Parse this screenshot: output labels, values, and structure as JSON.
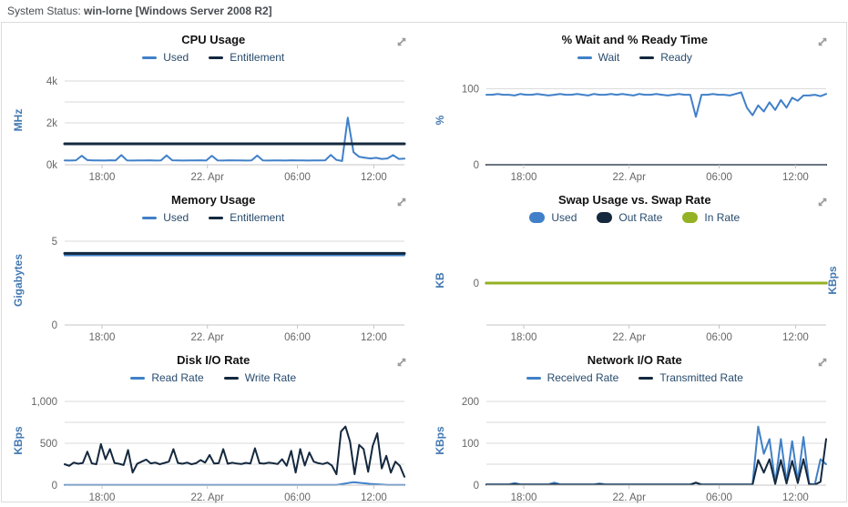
{
  "header": {
    "label": "System Status:",
    "value": "win-lorne [Windows Server 2008 R2]"
  },
  "icons": {
    "expand": "diagonal-resize-arrows"
  },
  "colors": {
    "blue": "#4080c8",
    "navy": "#14283e",
    "green": "#94b223",
    "legend_text": "#274b6d",
    "axis_title": "#4379b2",
    "tick_text": "#666666",
    "grid": "#d9d9d9",
    "axis_line": "#c4c4c4",
    "title": "#121212",
    "expand_icon": "#9a9a9a",
    "header_text": "#484d52",
    "panel_border": "#dcdcdc"
  },
  "x_axis": {
    "labels": [
      "18:00",
      "22. Apr",
      "06:00",
      "12:00"
    ],
    "fractions": [
      0.11,
      0.42,
      0.685,
      0.91
    ]
  },
  "charts": [
    {
      "type": "line",
      "title": "CPU Usage",
      "y_title": "MHz",
      "ymin": 0,
      "ymax": 4000,
      "grid": [
        1000,
        2000,
        3000,
        4000
      ],
      "yticks": [
        {
          "v": 0,
          "l": "0k"
        },
        {
          "v": 2000,
          "l": "2k"
        },
        {
          "v": 4000,
          "l": "4k"
        }
      ],
      "legend": "line",
      "series": [
        {
          "name": "Used",
          "color": "blue",
          "width": 2,
          "values": [
            210,
            200,
            215,
            430,
            220,
            205,
            210,
            200,
            215,
            205,
            460,
            210,
            200,
            210,
            205,
            215,
            200,
            210,
            450,
            215,
            205,
            200,
            210,
            205,
            215,
            200,
            430,
            210,
            200,
            215,
            205,
            210,
            200,
            205,
            440,
            210,
            200,
            210,
            205,
            200,
            215,
            205,
            210,
            200,
            210,
            205,
            215,
            470,
            230,
            180,
            2250,
            600,
            380,
            340,
            300,
            330,
            280,
            300,
            460,
            280,
            290
          ]
        },
        {
          "name": "Entitlement",
          "color": "navy",
          "width": 3,
          "values": [
            1000,
            1000
          ]
        }
      ]
    },
    {
      "type": "line",
      "title": "% Wait and % Ready Time",
      "y_title": "%",
      "ymin": 0,
      "ymax": 110,
      "grid": [
        100
      ],
      "yticks": [
        {
          "v": 0,
          "l": "0"
        },
        {
          "v": 100,
          "l": "100"
        }
      ],
      "legend": "line",
      "series": [
        {
          "name": "Wait",
          "color": "blue",
          "width": 2,
          "values": [
            92,
            92,
            93,
            92,
            92,
            91,
            93,
            92,
            92,
            93,
            92,
            91,
            92,
            93,
            92,
            92,
            93,
            92,
            91,
            93,
            92,
            92,
            93,
            92,
            93,
            92,
            91,
            93,
            92,
            92,
            93,
            92,
            91,
            92,
            93,
            92,
            92,
            63,
            92,
            92,
            93,
            92,
            92,
            91,
            93,
            95,
            75,
            65,
            78,
            70,
            82,
            72,
            85,
            75,
            88,
            84,
            91,
            91,
            92,
            90,
            93
          ]
        },
        {
          "name": "Ready",
          "color": "navy",
          "width": 2,
          "values": [
            0,
            0
          ]
        }
      ]
    },
    {
      "type": "line",
      "title": "Memory Usage",
      "y_title": "Gigabytes",
      "ymin": 0,
      "ymax": 5,
      "grid": [
        5
      ],
      "yticks": [
        {
          "v": 0,
          "l": "0"
        },
        {
          "v": 5,
          "l": "5"
        }
      ],
      "legend": "line",
      "series": [
        {
          "name": "Used",
          "color": "blue",
          "width": 2,
          "values": [
            4.16,
            4.16
          ]
        },
        {
          "name": "Entitlement",
          "color": "navy",
          "width": 3,
          "values": [
            4.27,
            4.27
          ]
        }
      ]
    },
    {
      "type": "line",
      "title": "Swap Usage vs. Swap Rate",
      "y_title": "KB",
      "y_title_right": "KBps",
      "ymin": -1,
      "ymax": 1,
      "grid": [
        0
      ],
      "yticks": [
        {
          "v": 0,
          "l": "0"
        }
      ],
      "legend": "pill",
      "series": [
        {
          "name": "Used",
          "color": "blue",
          "width": 3,
          "values": [
            0,
            0
          ]
        },
        {
          "name": "Out Rate",
          "color": "navy",
          "width": 3,
          "values": [
            0,
            0
          ]
        },
        {
          "name": "In Rate",
          "color": "green",
          "width": 3,
          "values": [
            0,
            0
          ]
        }
      ]
    },
    {
      "type": "line",
      "title": "Disk I/O Rate",
      "y_title": "KBps",
      "ymin": 0,
      "ymax": 1000,
      "grid": [
        250,
        500,
        750,
        1000
      ],
      "yticks": [
        {
          "v": 0,
          "l": "0"
        },
        {
          "v": 500,
          "l": "500"
        },
        {
          "v": 1000,
          "l": "1,000"
        }
      ],
      "legend": "line",
      "series": [
        {
          "name": "Read Rate",
          "color": "blue",
          "width": 2,
          "values": [
            3,
            3,
            3,
            3,
            3,
            3,
            3,
            3,
            3,
            3,
            3,
            3,
            3,
            3,
            3,
            3,
            3,
            35,
            15,
            3,
            3
          ]
        },
        {
          "name": "Write Rate",
          "color": "navy",
          "width": 2,
          "values": [
            250,
            230,
            270,
            255,
            265,
            400,
            260,
            250,
            490,
            310,
            430,
            265,
            255,
            240,
            420,
            150,
            255,
            280,
            305,
            260,
            270,
            250,
            265,
            280,
            430,
            265,
            255,
            270,
            250,
            262,
            300,
            268,
            360,
            258,
            262,
            430,
            255,
            268,
            258,
            252,
            266,
            258,
            440,
            262,
            256,
            268,
            262,
            252,
            310,
            232,
            410,
            150,
            430,
            235,
            390,
            280,
            262,
            252,
            270,
            235,
            130,
            640,
            700,
            520,
            130,
            480,
            430,
            160,
            470,
            620,
            200,
            350,
            150,
            280,
            230,
            100
          ]
        }
      ]
    },
    {
      "type": "line",
      "title": "Network I/O Rate",
      "y_title": "KBps",
      "ymin": 0,
      "ymax": 200,
      "grid": [
        50,
        100,
        150,
        200
      ],
      "yticks": [
        {
          "v": 0,
          "l": "0"
        },
        {
          "v": 100,
          "l": "100"
        },
        {
          "v": 200,
          "l": "200"
        }
      ],
      "legend": "line",
      "series": [
        {
          "name": "Received Rate",
          "color": "blue",
          "width": 2,
          "values": [
            2,
            2,
            2,
            2,
            2,
            5,
            2,
            2,
            2,
            2,
            2,
            2,
            6,
            2,
            2,
            2,
            2,
            2,
            2,
            2,
            4,
            2,
            2,
            2,
            2,
            2,
            2,
            2,
            2,
            2,
            2,
            2,
            2,
            2,
            2,
            2,
            2,
            5,
            2,
            2,
            2,
            2,
            2,
            2,
            2,
            2,
            2,
            2,
            140,
            75,
            110,
            5,
            110,
            8,
            105,
            10,
            115,
            3,
            2,
            62,
            50
          ]
        },
        {
          "name": "Transmitted Rate",
          "color": "navy",
          "width": 2,
          "values": [
            1,
            1,
            1,
            1,
            1,
            2,
            1,
            1,
            1,
            1,
            1,
            1,
            2,
            1,
            1,
            1,
            1,
            1,
            1,
            1,
            2,
            1,
            1,
            1,
            1,
            1,
            1,
            1,
            1,
            1,
            1,
            1,
            1,
            1,
            1,
            1,
            1,
            6,
            1,
            1,
            1,
            1,
            1,
            1,
            1,
            1,
            1,
            1,
            60,
            30,
            62,
            3,
            60,
            4,
            58,
            5,
            62,
            2,
            1,
            8,
            110
          ]
        }
      ]
    }
  ]
}
